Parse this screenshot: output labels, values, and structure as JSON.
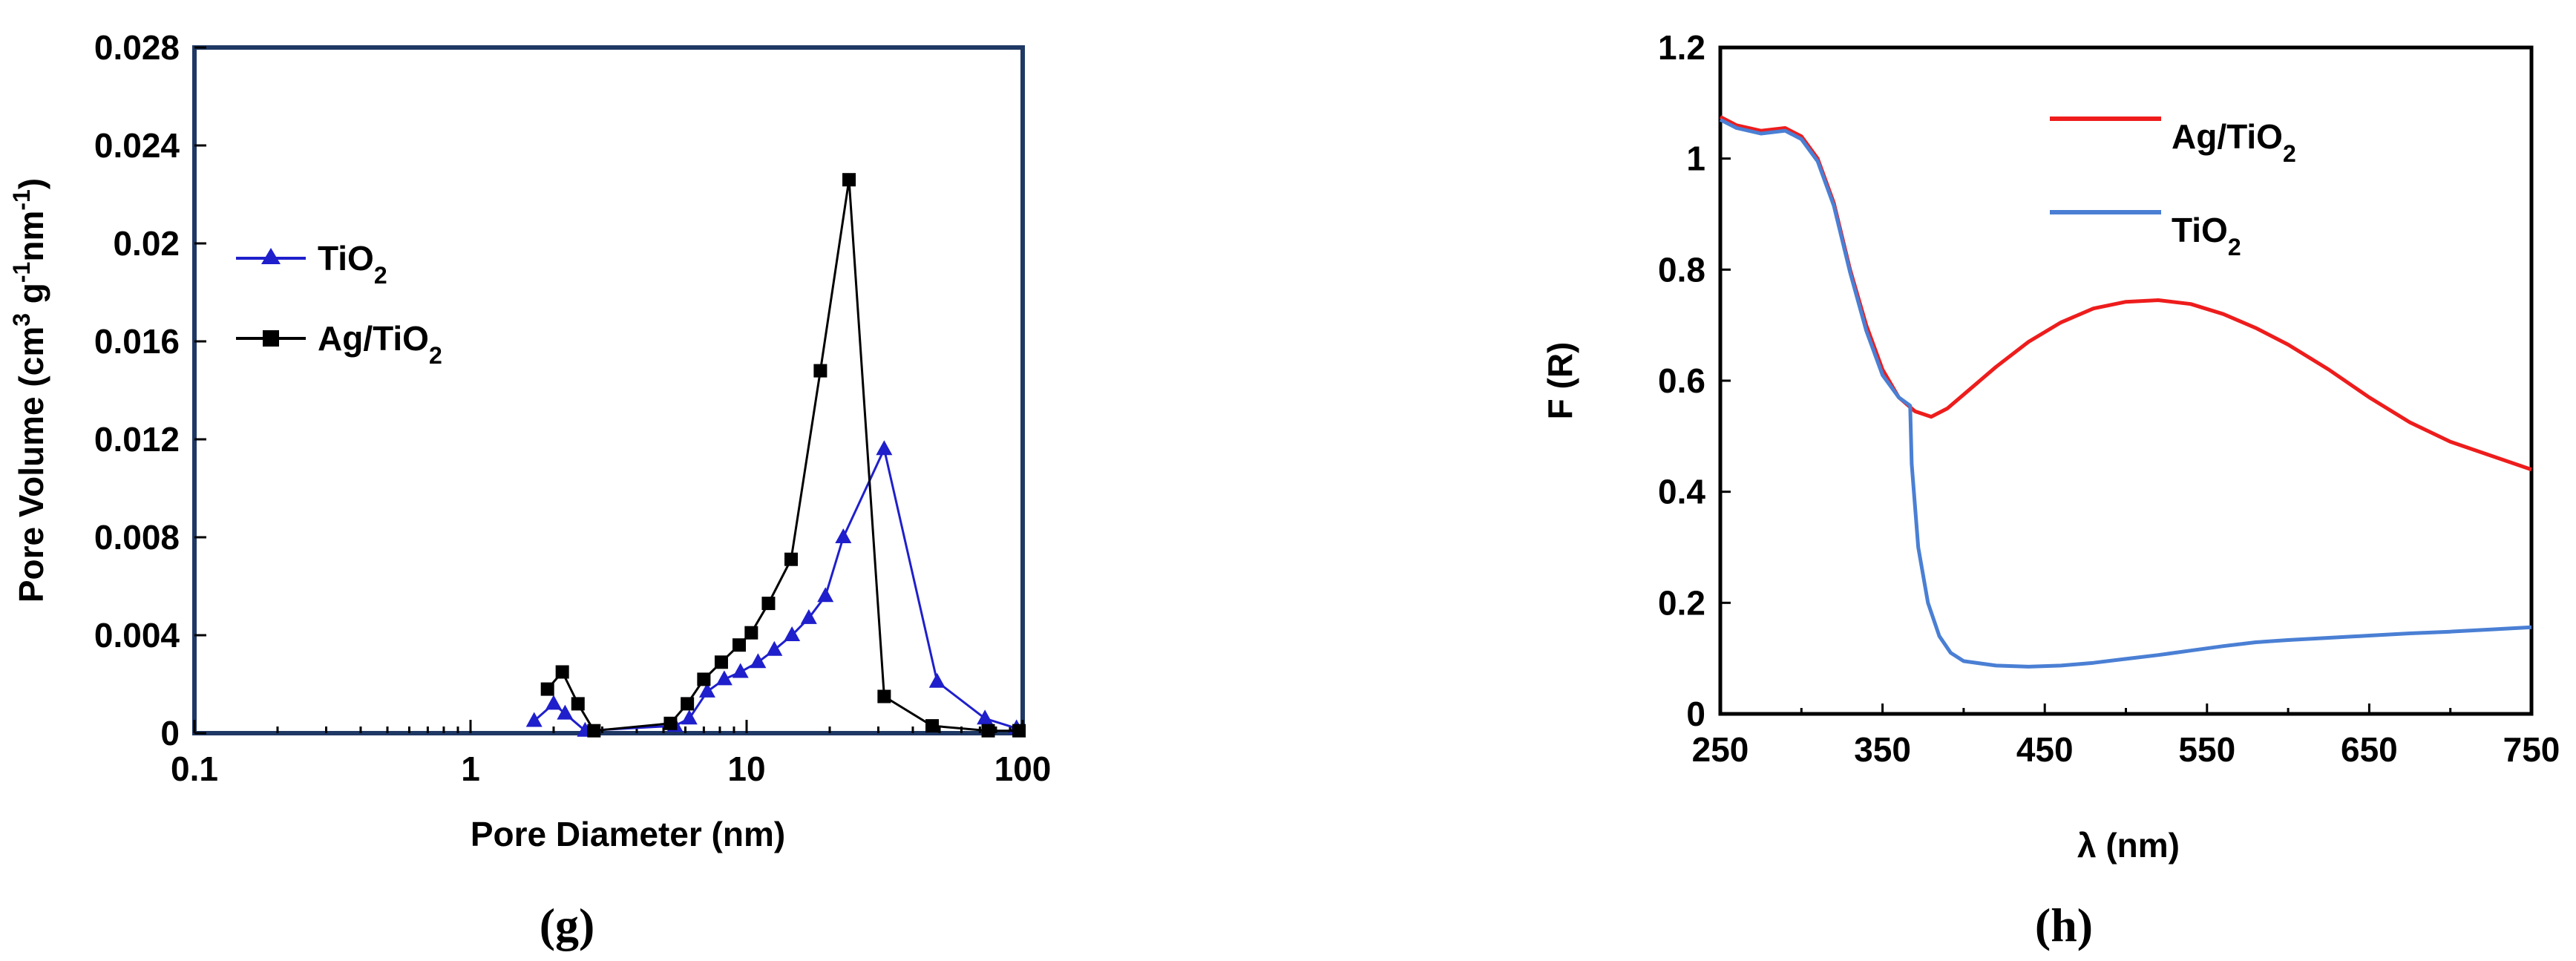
{
  "colors": {
    "tio2_g": "#1f1fcc",
    "ag_g": "#000000",
    "ag_h": "#ee1c1c",
    "tio2_h": "#4a7fd4",
    "frame_g": "#1f3864"
  },
  "chart_data": [
    {
      "id": "g",
      "panel_label": "(g)",
      "type": "line",
      "xscale": "log",
      "xlabel": "Pore Diameter (nm)",
      "ylabel": "Pore Volume (cm³ g⁻¹nm⁻¹)",
      "xlim": [
        0.1,
        100
      ],
      "ylim": [
        0,
        0.028
      ],
      "x_ticks": [
        0.1,
        1,
        10,
        100
      ],
      "x_tick_labels": [
        "0.1",
        "1",
        "10",
        "100"
      ],
      "y_ticks": [
        0,
        0.004,
        0.008,
        0.012,
        0.016,
        0.02,
        0.024,
        0.028
      ],
      "y_tick_labels": [
        "0",
        "0.004",
        "0.008",
        "0.012",
        "0.016",
        "0.02",
        "0.024",
        "0.028"
      ],
      "grid": false,
      "legend_position": "left",
      "series": [
        {
          "name": "TiO2",
          "marker": "triangle",
          "color": "#1f1fcc",
          "x": [
            1.7,
            2.0,
            2.2,
            2.6,
            5.5,
            6.2,
            7.2,
            8.3,
            9.5,
            11.0,
            12.6,
            14.6,
            16.8,
            19.3,
            22.4,
            31.5,
            49.0,
            73.0,
            95.0
          ],
          "y": [
            0.0005,
            0.0012,
            0.0008,
            0.0001,
            0.0003,
            0.0006,
            0.0017,
            0.0022,
            0.0025,
            0.0029,
            0.0034,
            0.004,
            0.0047,
            0.0056,
            0.008,
            0.0116,
            0.0021,
            0.0006,
            0.0002
          ]
        },
        {
          "name": "Ag/TiO2",
          "marker": "square",
          "color": "#000000",
          "x": [
            1.9,
            2.15,
            2.45,
            2.8,
            5.3,
            6.1,
            7.0,
            8.1,
            9.4,
            10.4,
            12.0,
            14.5,
            18.5,
            23.5,
            31.5,
            47.0,
            75.0,
            97.0
          ],
          "y": [
            0.0018,
            0.0025,
            0.0012,
            0.0001,
            0.0004,
            0.0012,
            0.0022,
            0.0029,
            0.0036,
            0.0041,
            0.0053,
            0.0071,
            0.0148,
            0.0226,
            0.0015,
            0.0003,
            0.0001,
            0.0001
          ]
        }
      ]
    },
    {
      "id": "h",
      "panel_label": "(h)",
      "type": "line",
      "xlabel": "λ (nm)",
      "ylabel": "F (R)",
      "xlim": [
        250,
        750
      ],
      "ylim": [
        0,
        1.2
      ],
      "x_ticks": [
        250,
        350,
        450,
        550,
        650,
        750
      ],
      "x_tick_labels": [
        "250",
        "350",
        "450",
        "550",
        "650",
        "750"
      ],
      "y_ticks": [
        0,
        0.2,
        0.4,
        0.6,
        0.8,
        1,
        1.2
      ],
      "y_tick_labels": [
        "0",
        "0.2",
        "0.4",
        "0.6",
        "0.8",
        "1",
        "1.2"
      ],
      "grid": false,
      "legend_position": "top-right",
      "series": [
        {
          "name": "Ag/TiO2",
          "color": "#ee1c1c",
          "x": [
            250,
            260,
            275,
            290,
            300,
            310,
            320,
            330,
            340,
            350,
            360,
            370,
            380,
            390,
            400,
            420,
            440,
            460,
            480,
            500,
            520,
            540,
            560,
            580,
            600,
            625,
            650,
            675,
            700,
            725,
            750
          ],
          "y": [
            1.075,
            1.06,
            1.05,
            1.055,
            1.04,
            1.0,
            0.92,
            0.8,
            0.7,
            0.62,
            0.57,
            0.545,
            0.535,
            0.55,
            0.575,
            0.625,
            0.67,
            0.705,
            0.73,
            0.742,
            0.745,
            0.738,
            0.72,
            0.695,
            0.665,
            0.62,
            0.57,
            0.525,
            0.49,
            0.465,
            0.44
          ]
        },
        {
          "name": "TiO2",
          "color": "#4a7fd4",
          "x": [
            250,
            260,
            275,
            290,
            300,
            310,
            320,
            330,
            340,
            350,
            360,
            367,
            368,
            372,
            378,
            385,
            392,
            400,
            420,
            440,
            460,
            480,
            500,
            520,
            540,
            560,
            580,
            600,
            625,
            650,
            675,
            700,
            725,
            750
          ],
          "y": [
            1.07,
            1.055,
            1.045,
            1.05,
            1.035,
            0.995,
            0.915,
            0.795,
            0.69,
            0.61,
            0.57,
            0.555,
            0.45,
            0.3,
            0.2,
            0.14,
            0.11,
            0.095,
            0.087,
            0.085,
            0.087,
            0.092,
            0.099,
            0.106,
            0.114,
            0.122,
            0.129,
            0.133,
            0.137,
            0.141,
            0.145,
            0.148,
            0.152,
            0.156
          ]
        }
      ]
    }
  ]
}
